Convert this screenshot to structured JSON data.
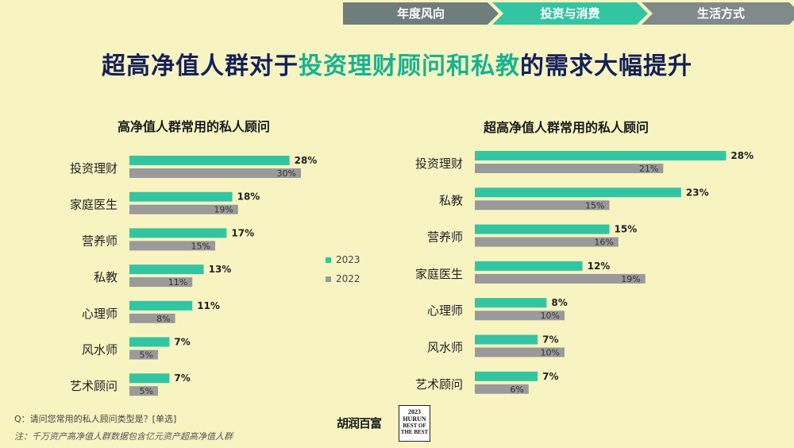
{
  "nav": {
    "steps": [
      "年度风向",
      "投资与消费",
      "生活方式"
    ],
    "active_color": "#33c5a2"
  },
  "page_title": {
    "part1": "超高净值人群对于",
    "highlight": "投资理财顾问和私教",
    "part2": "的需求大幅提升"
  },
  "legend": {
    "items": [
      "2023",
      "2022"
    ]
  },
  "colors": {
    "y2023": "#33c5a2",
    "y2022": "#9a9a9a"
  },
  "chart_data": [
    {
      "type": "bar",
      "orientation": "horizontal",
      "title": "高净值人群常用的私人顾问",
      "categories": [
        "投资理财",
        "家庭医生",
        "营养师",
        "私教",
        "心理师",
        "风水师",
        "艺术顾问"
      ],
      "series": [
        {
          "name": "2023",
          "values": [
            28,
            18,
            17,
            13,
            11,
            7,
            7
          ]
        },
        {
          "name": "2022",
          "values": [
            30,
            19,
            15,
            11,
            8,
            5,
            5
          ]
        }
      ],
      "unit": "%"
    },
    {
      "type": "bar",
      "orientation": "horizontal",
      "title": "超高净值人群常用的私人顾问",
      "categories": [
        "投资理财",
        "私教",
        "营养师",
        "家庭医生",
        "心理师",
        "风水师",
        "艺术顾问"
      ],
      "series": [
        {
          "name": "2023",
          "values": [
            28,
            23,
            15,
            12,
            8,
            7,
            7
          ]
        },
        {
          "name": "2022",
          "values": [
            21,
            15,
            16,
            19,
            10,
            10,
            6
          ]
        }
      ],
      "unit": "%"
    }
  ],
  "footer": {
    "question": "Q：请问您常用的私人顾问类型是？[单选]",
    "note": "注：千万资产高净值人群数据包含亿元资产超高净值人群"
  },
  "logos": {
    "hurun": "胡润百富",
    "badge_year": "2023",
    "badge_name": "HURUN",
    "badge_text": "BEST OF THE BEST"
  }
}
